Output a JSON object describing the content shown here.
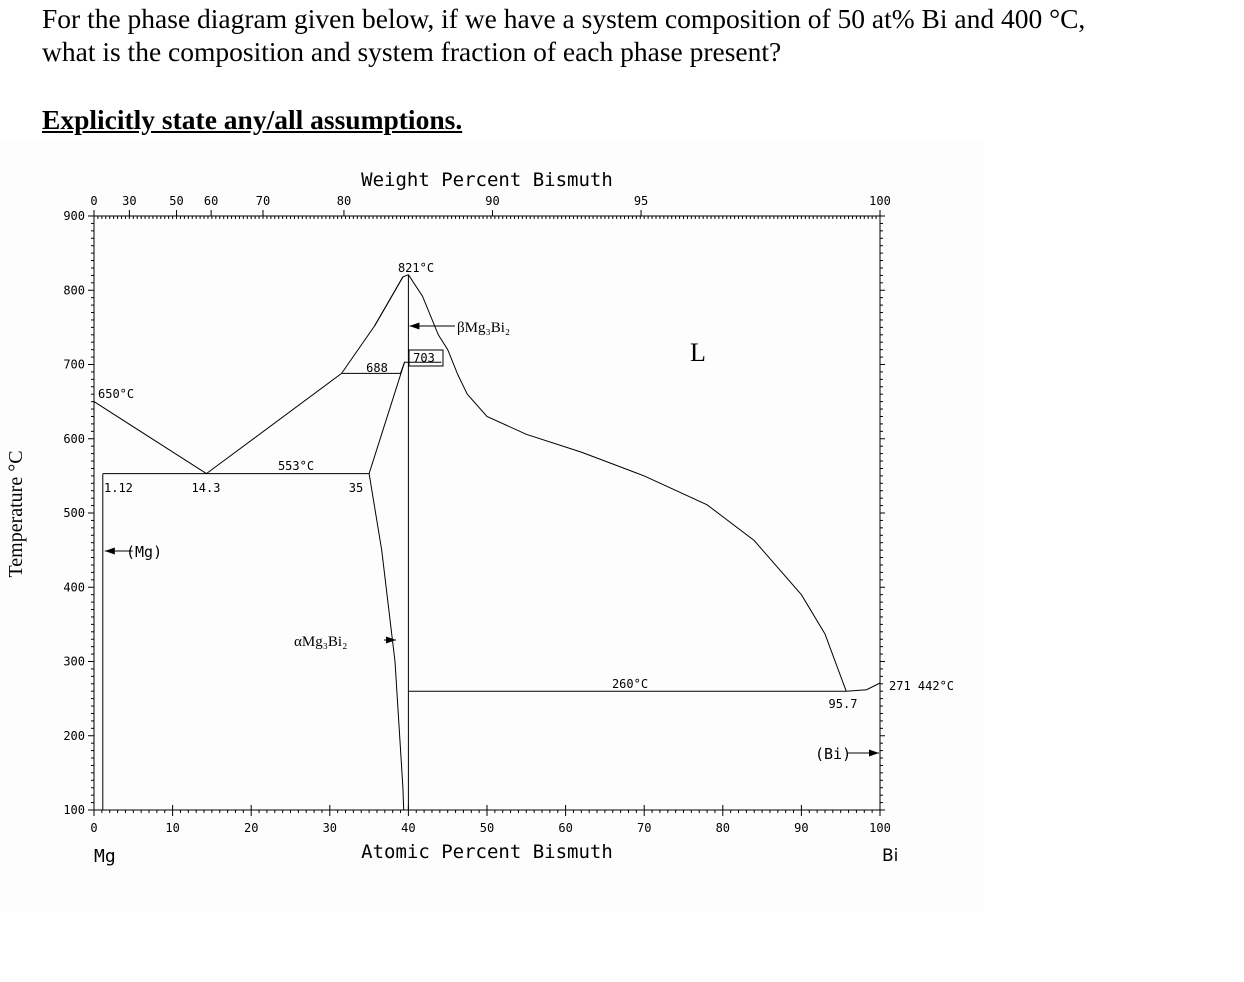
{
  "question": {
    "line1": "For the phase diagram given below, if we have a system composition of 50 at% Bi and 400 °C,",
    "line2": "what is the composition and system fraction of each phase present?",
    "assumptions": "Explicitly state any/all assumptions."
  },
  "diagram": {
    "top_axis_title": "Weight Percent Bismuth",
    "bottom_axis_title": "Atomic Percent Bismuth",
    "y_axis_title": "Temperature °C",
    "left_element": "Mg",
    "right_element": "Bi",
    "y_ticks": [
      "100",
      "200",
      "300",
      "400",
      "500",
      "600",
      "700",
      "800",
      "900"
    ],
    "x_ticks": [
      "0",
      "10",
      "20",
      "30",
      "40",
      "50",
      "60",
      "70",
      "80",
      "90",
      "100"
    ],
    "top_ticks": [
      "0",
      "30",
      "50",
      "60",
      "70",
      "80",
      "90",
      "95",
      "100"
    ],
    "labels": {
      "t821": "821°C",
      "t650": "650°C",
      "t553": "553°C",
      "t260": "260°C",
      "t271": "271 442°C",
      "v688": "688",
      "v703": "703",
      "v112": "1.12",
      "v143": "14.3",
      "v35": "35",
      "v957": "95.7",
      "liquid": "L",
      "mg_phase": "(Mg)",
      "bi_phase": "(Bi)",
      "beta": "βMg₃Bi₂",
      "alpha": "αMg₃Bi₂"
    }
  }
}
